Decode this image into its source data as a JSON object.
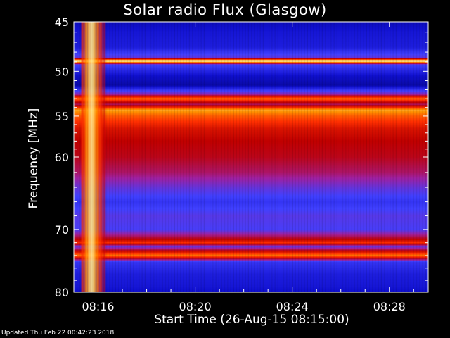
{
  "title": "Solar radio Flux (Glasgow)",
  "footer": "Updated Thu Feb 22 00:42:23 2018",
  "chart_data": {
    "type": "heatmap",
    "title": "Solar radio Flux (Glasgow)",
    "xlabel": "Start Time (26-Aug-15 08:15:00)",
    "ylabel": "Frequency [MHz]",
    "x_ticks": [
      "08:16",
      "08:20",
      "08:24",
      "08:28"
    ],
    "x_tick_minutes": [
      1,
      5,
      9,
      13
    ],
    "xlim_minutes": [
      0,
      14.6
    ],
    "y_ticks": [
      45,
      50,
      55,
      60,
      70,
      80
    ],
    "ylim": [
      45,
      80
    ],
    "y_scale": "log",
    "colormap": [
      "#000060",
      "#1010d0",
      "#4040ff",
      "#a020a0",
      "#c00000",
      "#ff3000",
      "#ff9000",
      "#ffe080",
      "#ffffff"
    ],
    "intensity_profile": [
      {
        "mhz": 45.0,
        "level": 0.1
      },
      {
        "mhz": 46.0,
        "level": 0.14
      },
      {
        "mhz": 47.5,
        "level": 0.16
      },
      {
        "mhz": 48.6,
        "level": 0.3
      },
      {
        "mhz": 48.9,
        "level": 1.0
      },
      {
        "mhz": 49.3,
        "level": 0.25
      },
      {
        "mhz": 50.5,
        "level": 0.12
      },
      {
        "mhz": 51.5,
        "level": 0.08
      },
      {
        "mhz": 52.5,
        "level": 0.35
      },
      {
        "mhz": 53.0,
        "level": 0.72
      },
      {
        "mhz": 53.6,
        "level": 0.4
      },
      {
        "mhz": 54.3,
        "level": 0.78
      },
      {
        "mhz": 55.0,
        "level": 0.68
      },
      {
        "mhz": 56.5,
        "level": 0.55
      },
      {
        "mhz": 58.0,
        "level": 0.5
      },
      {
        "mhz": 60.0,
        "level": 0.48
      },
      {
        "mhz": 62.0,
        "level": 0.42
      },
      {
        "mhz": 64.0,
        "level": 0.3
      },
      {
        "mhz": 66.0,
        "level": 0.22
      },
      {
        "mhz": 68.0,
        "level": 0.28
      },
      {
        "mhz": 70.0,
        "level": 0.26
      },
      {
        "mhz": 71.5,
        "level": 0.5
      },
      {
        "mhz": 72.0,
        "level": 0.62
      },
      {
        "mhz": 72.6,
        "level": 0.3
      },
      {
        "mhz": 74.0,
        "level": 0.72
      },
      {
        "mhz": 75.0,
        "level": 0.22
      },
      {
        "mhz": 77.0,
        "level": 0.16
      },
      {
        "mhz": 79.0,
        "level": 0.14
      },
      {
        "mhz": 80.0,
        "level": 0.12
      }
    ],
    "burst": {
      "start_minute": 0.3,
      "peak_minute": 0.7,
      "end_minute": 1.3,
      "level": 0.85
    }
  }
}
